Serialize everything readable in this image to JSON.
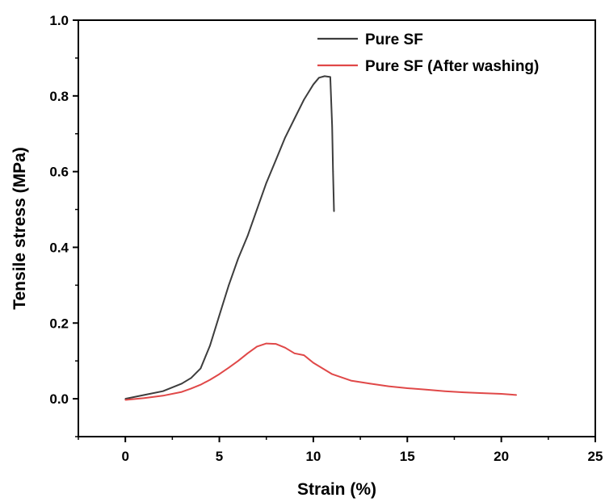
{
  "chart_data": {
    "type": "line",
    "title": "",
    "xlabel": "Strain (%)",
    "ylabel": "Tensile stress (MPa)",
    "xlim": [
      -2.5,
      25
    ],
    "ylim": [
      -0.1,
      1.0
    ],
    "x_ticks": [
      0,
      5,
      10,
      15,
      20,
      25
    ],
    "x_tick_labels": [
      "0",
      "5",
      "10",
      "15",
      "20",
      "25"
    ],
    "y_ticks": [
      0.0,
      0.2,
      0.4,
      0.6,
      0.8,
      1.0
    ],
    "y_tick_labels": [
      "0.0",
      "0.2",
      "0.4",
      "0.6",
      "0.8",
      "1.0"
    ],
    "grid": false,
    "legend_position": "top-right",
    "series": [
      {
        "name": "Pure SF",
        "color": "#3d3d3d",
        "x": [
          0,
          1,
          2,
          3,
          3.5,
          4,
          4.5,
          5,
          5.5,
          6,
          6.5,
          7,
          7.5,
          8,
          8.5,
          9,
          9.5,
          10,
          10.3,
          10.6,
          10.9,
          11.0,
          11.05,
          11.1
        ],
        "y": [
          0,
          0.01,
          0.02,
          0.04,
          0.055,
          0.08,
          0.14,
          0.22,
          0.3,
          0.37,
          0.43,
          0.5,
          0.57,
          0.63,
          0.69,
          0.74,
          0.79,
          0.83,
          0.848,
          0.852,
          0.85,
          0.72,
          0.6,
          0.495
        ]
      },
      {
        "name": "Pure SF (After washing)",
        "color": "#e04848",
        "x": [
          0,
          1,
          2,
          3,
          3.5,
          4,
          4.5,
          5,
          5.5,
          6,
          6.5,
          7,
          7.5,
          8,
          8.5,
          9,
          9.5,
          10,
          11,
          12,
          13,
          14,
          15,
          16,
          17,
          18,
          19,
          20,
          20.8
        ],
        "y": [
          -0.003,
          0.002,
          0.008,
          0.018,
          0.027,
          0.037,
          0.05,
          0.065,
          0.082,
          0.1,
          0.12,
          0.138,
          0.146,
          0.145,
          0.135,
          0.12,
          0.115,
          0.095,
          0.065,
          0.048,
          0.04,
          0.033,
          0.028,
          0.024,
          0.02,
          0.017,
          0.015,
          0.013,
          0.01
        ]
      }
    ]
  }
}
